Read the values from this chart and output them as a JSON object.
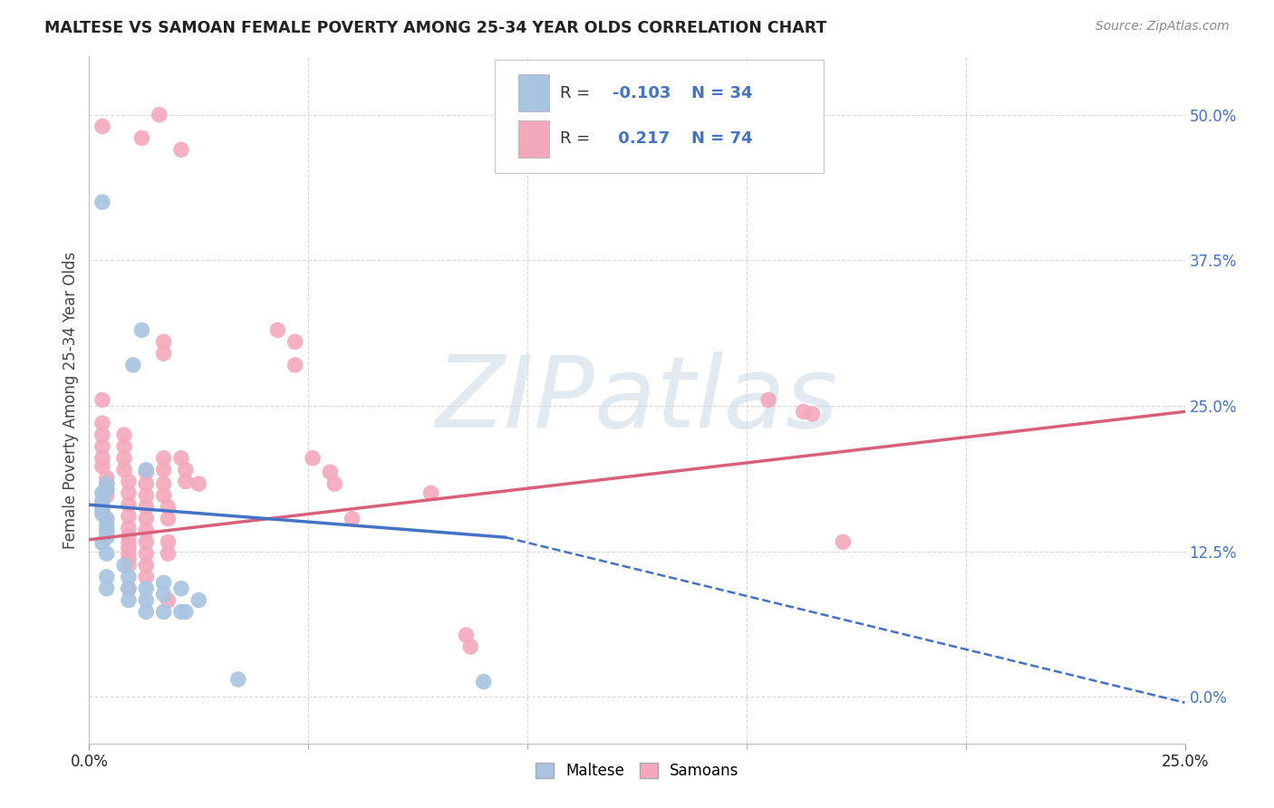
{
  "title": "MALTESE VS SAMOAN FEMALE POVERTY AMONG 25-34 YEAR OLDS CORRELATION CHART",
  "source": "Source: ZipAtlas.com",
  "ylabel": "Female Poverty Among 25-34 Year Olds",
  "xlim": [
    0.0,
    0.25
  ],
  "ylim": [
    -0.04,
    0.55
  ],
  "xticks_show": [
    0.0,
    0.25
  ],
  "xticklabels_show": [
    "0.0%",
    "25.0%"
  ],
  "xticks_minor": [
    0.05,
    0.1,
    0.15,
    0.2
  ],
  "yticks_right": [
    0.0,
    0.125,
    0.25,
    0.375,
    0.5
  ],
  "yticklabels_right": [
    "0.0%",
    "12.5%",
    "25.0%",
    "37.5%",
    "50.0%"
  ],
  "maltese_R": -0.103,
  "maltese_N": 34,
  "samoan_R": 0.217,
  "samoan_N": 74,
  "maltese_color": "#a8c4e0",
  "samoan_color": "#f4a8bc",
  "maltese_line_color": "#4472c4",
  "samoan_line_color": "#d9607a",
  "watermark": "ZIPatlas",
  "watermark_color": "#d0dce8",
  "background_color": "#ffffff",
  "grid_color": "#d8d8d8",
  "legend_r_color": "#4472c4",
  "legend_n_color": "#4472c4",
  "maltese_scatter": [
    [
      0.003,
      0.425
    ],
    [
      0.012,
      0.315
    ],
    [
      0.01,
      0.285
    ],
    [
      0.013,
      0.195
    ],
    [
      0.003,
      0.175
    ],
    [
      0.003,
      0.168
    ],
    [
      0.004,
      0.178
    ],
    [
      0.004,
      0.183
    ],
    [
      0.003,
      0.162
    ],
    [
      0.003,
      0.157
    ],
    [
      0.004,
      0.152
    ],
    [
      0.004,
      0.147
    ],
    [
      0.004,
      0.142
    ],
    [
      0.004,
      0.137
    ],
    [
      0.003,
      0.132
    ],
    [
      0.004,
      0.123
    ],
    [
      0.004,
      0.103
    ],
    [
      0.004,
      0.093
    ],
    [
      0.008,
      0.113
    ],
    [
      0.009,
      0.103
    ],
    [
      0.009,
      0.093
    ],
    [
      0.009,
      0.083
    ],
    [
      0.013,
      0.093
    ],
    [
      0.013,
      0.083
    ],
    [
      0.013,
      0.073
    ],
    [
      0.017,
      0.098
    ],
    [
      0.017,
      0.088
    ],
    [
      0.017,
      0.073
    ],
    [
      0.021,
      0.093
    ],
    [
      0.021,
      0.073
    ],
    [
      0.025,
      0.083
    ],
    [
      0.022,
      0.073
    ],
    [
      0.09,
      0.013
    ],
    [
      0.034,
      0.015
    ]
  ],
  "samoan_scatter": [
    [
      0.003,
      0.49
    ],
    [
      0.012,
      0.48
    ],
    [
      0.016,
      0.5
    ],
    [
      0.021,
      0.47
    ],
    [
      0.003,
      0.255
    ],
    [
      0.003,
      0.235
    ],
    [
      0.003,
      0.225
    ],
    [
      0.003,
      0.215
    ],
    [
      0.003,
      0.205
    ],
    [
      0.003,
      0.198
    ],
    [
      0.004,
      0.188
    ],
    [
      0.004,
      0.183
    ],
    [
      0.004,
      0.178
    ],
    [
      0.004,
      0.173
    ],
    [
      0.003,
      0.168
    ],
    [
      0.003,
      0.163
    ],
    [
      0.003,
      0.158
    ],
    [
      0.004,
      0.153
    ],
    [
      0.004,
      0.143
    ],
    [
      0.008,
      0.225
    ],
    [
      0.008,
      0.215
    ],
    [
      0.008,
      0.205
    ],
    [
      0.008,
      0.195
    ],
    [
      0.009,
      0.185
    ],
    [
      0.009,
      0.175
    ],
    [
      0.009,
      0.165
    ],
    [
      0.009,
      0.155
    ],
    [
      0.009,
      0.145
    ],
    [
      0.009,
      0.138
    ],
    [
      0.009,
      0.133
    ],
    [
      0.009,
      0.128
    ],
    [
      0.009,
      0.123
    ],
    [
      0.009,
      0.118
    ],
    [
      0.009,
      0.113
    ],
    [
      0.009,
      0.093
    ],
    [
      0.013,
      0.193
    ],
    [
      0.013,
      0.183
    ],
    [
      0.013,
      0.173
    ],
    [
      0.013,
      0.163
    ],
    [
      0.013,
      0.153
    ],
    [
      0.013,
      0.143
    ],
    [
      0.013,
      0.133
    ],
    [
      0.013,
      0.123
    ],
    [
      0.013,
      0.113
    ],
    [
      0.013,
      0.103
    ],
    [
      0.017,
      0.305
    ],
    [
      0.017,
      0.295
    ],
    [
      0.017,
      0.205
    ],
    [
      0.017,
      0.195
    ],
    [
      0.017,
      0.183
    ],
    [
      0.017,
      0.173
    ],
    [
      0.018,
      0.163
    ],
    [
      0.018,
      0.153
    ],
    [
      0.018,
      0.133
    ],
    [
      0.018,
      0.123
    ],
    [
      0.018,
      0.083
    ],
    [
      0.021,
      0.205
    ],
    [
      0.022,
      0.195
    ],
    [
      0.022,
      0.185
    ],
    [
      0.025,
      0.183
    ],
    [
      0.043,
      0.315
    ],
    [
      0.047,
      0.305
    ],
    [
      0.047,
      0.285
    ],
    [
      0.051,
      0.205
    ],
    [
      0.055,
      0.193
    ],
    [
      0.056,
      0.183
    ],
    [
      0.06,
      0.153
    ],
    [
      0.078,
      0.175
    ],
    [
      0.086,
      0.053
    ],
    [
      0.087,
      0.043
    ],
    [
      0.155,
      0.255
    ],
    [
      0.163,
      0.245
    ],
    [
      0.165,
      0.243
    ],
    [
      0.172,
      0.133
    ]
  ],
  "samoan_reg": [
    0.0,
    0.25,
    0.135,
    0.245
  ],
  "maltese_solid_reg": [
    0.0,
    0.095,
    0.165,
    0.137
  ],
  "maltese_dash_reg": [
    0.095,
    0.25,
    0.137,
    -0.005
  ]
}
